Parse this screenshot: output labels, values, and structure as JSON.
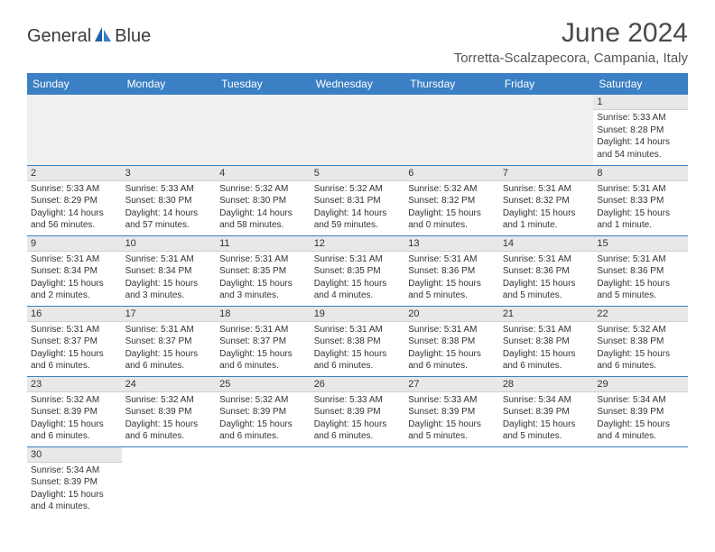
{
  "logo": {
    "text1": "General",
    "text2": "Blue"
  },
  "title": "June 2024",
  "location": "Torretta-Scalzapecora, Campania, Italy",
  "colors": {
    "header_bg": "#3b7fc4",
    "header_text": "#ffffff",
    "daynum_bg": "#e8e8e8",
    "empty_bg": "#f0f0f0",
    "border": "#3b7fc4",
    "text": "#333333"
  },
  "typography": {
    "title_fontsize": 30,
    "location_fontsize": 15,
    "dayheader_fontsize": 12,
    "daynum_fontsize": 11,
    "cell_fontsize": 10
  },
  "day_headers": [
    "Sunday",
    "Monday",
    "Tuesday",
    "Wednesday",
    "Thursday",
    "Friday",
    "Saturday"
  ],
  "weeks": [
    [
      null,
      null,
      null,
      null,
      null,
      null,
      {
        "n": "1",
        "sunrise": "5:33 AM",
        "sunset": "8:28 PM",
        "daylight": "14 hours and 54 minutes."
      }
    ],
    [
      {
        "n": "2",
        "sunrise": "5:33 AM",
        "sunset": "8:29 PM",
        "daylight": "14 hours and 56 minutes."
      },
      {
        "n": "3",
        "sunrise": "5:33 AM",
        "sunset": "8:30 PM",
        "daylight": "14 hours and 57 minutes."
      },
      {
        "n": "4",
        "sunrise": "5:32 AM",
        "sunset": "8:30 PM",
        "daylight": "14 hours and 58 minutes."
      },
      {
        "n": "5",
        "sunrise": "5:32 AM",
        "sunset": "8:31 PM",
        "daylight": "14 hours and 59 minutes."
      },
      {
        "n": "6",
        "sunrise": "5:32 AM",
        "sunset": "8:32 PM",
        "daylight": "15 hours and 0 minutes."
      },
      {
        "n": "7",
        "sunrise": "5:31 AM",
        "sunset": "8:32 PM",
        "daylight": "15 hours and 1 minute."
      },
      {
        "n": "8",
        "sunrise": "5:31 AM",
        "sunset": "8:33 PM",
        "daylight": "15 hours and 1 minute."
      }
    ],
    [
      {
        "n": "9",
        "sunrise": "5:31 AM",
        "sunset": "8:34 PM",
        "daylight": "15 hours and 2 minutes."
      },
      {
        "n": "10",
        "sunrise": "5:31 AM",
        "sunset": "8:34 PM",
        "daylight": "15 hours and 3 minutes."
      },
      {
        "n": "11",
        "sunrise": "5:31 AM",
        "sunset": "8:35 PM",
        "daylight": "15 hours and 3 minutes."
      },
      {
        "n": "12",
        "sunrise": "5:31 AM",
        "sunset": "8:35 PM",
        "daylight": "15 hours and 4 minutes."
      },
      {
        "n": "13",
        "sunrise": "5:31 AM",
        "sunset": "8:36 PM",
        "daylight": "15 hours and 5 minutes."
      },
      {
        "n": "14",
        "sunrise": "5:31 AM",
        "sunset": "8:36 PM",
        "daylight": "15 hours and 5 minutes."
      },
      {
        "n": "15",
        "sunrise": "5:31 AM",
        "sunset": "8:36 PM",
        "daylight": "15 hours and 5 minutes."
      }
    ],
    [
      {
        "n": "16",
        "sunrise": "5:31 AM",
        "sunset": "8:37 PM",
        "daylight": "15 hours and 6 minutes."
      },
      {
        "n": "17",
        "sunrise": "5:31 AM",
        "sunset": "8:37 PM",
        "daylight": "15 hours and 6 minutes."
      },
      {
        "n": "18",
        "sunrise": "5:31 AM",
        "sunset": "8:37 PM",
        "daylight": "15 hours and 6 minutes."
      },
      {
        "n": "19",
        "sunrise": "5:31 AM",
        "sunset": "8:38 PM",
        "daylight": "15 hours and 6 minutes."
      },
      {
        "n": "20",
        "sunrise": "5:31 AM",
        "sunset": "8:38 PM",
        "daylight": "15 hours and 6 minutes."
      },
      {
        "n": "21",
        "sunrise": "5:31 AM",
        "sunset": "8:38 PM",
        "daylight": "15 hours and 6 minutes."
      },
      {
        "n": "22",
        "sunrise": "5:32 AM",
        "sunset": "8:38 PM",
        "daylight": "15 hours and 6 minutes."
      }
    ],
    [
      {
        "n": "23",
        "sunrise": "5:32 AM",
        "sunset": "8:39 PM",
        "daylight": "15 hours and 6 minutes."
      },
      {
        "n": "24",
        "sunrise": "5:32 AM",
        "sunset": "8:39 PM",
        "daylight": "15 hours and 6 minutes."
      },
      {
        "n": "25",
        "sunrise": "5:32 AM",
        "sunset": "8:39 PM",
        "daylight": "15 hours and 6 minutes."
      },
      {
        "n": "26",
        "sunrise": "5:33 AM",
        "sunset": "8:39 PM",
        "daylight": "15 hours and 6 minutes."
      },
      {
        "n": "27",
        "sunrise": "5:33 AM",
        "sunset": "8:39 PM",
        "daylight": "15 hours and 5 minutes."
      },
      {
        "n": "28",
        "sunrise": "5:34 AM",
        "sunset": "8:39 PM",
        "daylight": "15 hours and 5 minutes."
      },
      {
        "n": "29",
        "sunrise": "5:34 AM",
        "sunset": "8:39 PM",
        "daylight": "15 hours and 4 minutes."
      }
    ],
    [
      {
        "n": "30",
        "sunrise": "5:34 AM",
        "sunset": "8:39 PM",
        "daylight": "15 hours and 4 minutes."
      },
      null,
      null,
      null,
      null,
      null,
      null
    ]
  ],
  "labels": {
    "sunrise": "Sunrise:",
    "sunset": "Sunset:",
    "daylight": "Daylight:"
  }
}
